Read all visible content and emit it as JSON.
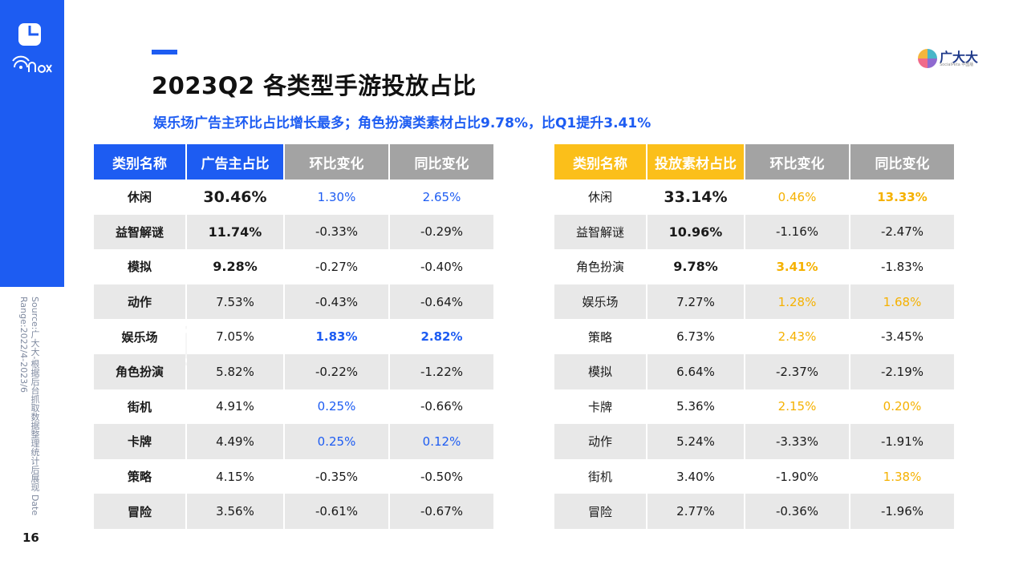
{
  "page_number": "16",
  "source_note": "Source:广大大-根据后台抓取数据整理统计后展现\nDate Range:2022/4-2023/6",
  "title": "2023Q2 各类型手游投放占比",
  "subtitle": "娱乐场广告主环比占比增长最多；角色扮演类素材占比9.78%，比Q1提升3.41%",
  "brand": {
    "name": "广大大",
    "tagline": "SocialPeta 中国版"
  },
  "colors": {
    "primary_blue": "#1d5cf2",
    "accent_yellow": "#fbbf1a",
    "header_gray": "#a3a3a3"
  },
  "advertiser_table": {
    "headers": [
      "类别名称",
      "广告主占比",
      "环比变化",
      "同比变化"
    ],
    "rows": [
      {
        "name": "休闲",
        "share": "30.46%",
        "qoq": "1.30%",
        "yoy": "2.65%"
      },
      {
        "name": "益智解谜",
        "share": "11.74%",
        "qoq": "-0.33%",
        "yoy": "-0.29%"
      },
      {
        "name": "模拟",
        "share": "9.28%",
        "qoq": "-0.27%",
        "yoy": "-0.40%"
      },
      {
        "name": "动作",
        "share": "7.53%",
        "qoq": "-0.43%",
        "yoy": "-0.64%"
      },
      {
        "name": "娱乐场",
        "share": "7.05%",
        "qoq": "1.83%",
        "yoy": "2.82%"
      },
      {
        "name": "角色扮演",
        "share": "5.82%",
        "qoq": "-0.22%",
        "yoy": "-1.22%"
      },
      {
        "name": "街机",
        "share": "4.91%",
        "qoq": "0.25%",
        "yoy": "-0.66%"
      },
      {
        "name": "卡牌",
        "share": "4.49%",
        "qoq": "0.25%",
        "yoy": "0.12%"
      },
      {
        "name": "策略",
        "share": "4.15%",
        "qoq": "-0.35%",
        "yoy": "-0.50%"
      },
      {
        "name": "冒险",
        "share": "3.56%",
        "qoq": "-0.61%",
        "yoy": "-0.67%"
      }
    ]
  },
  "creative_table": {
    "headers": [
      "类别名称",
      "投放素材占比",
      "环比变化",
      "同比变化"
    ],
    "rows": [
      {
        "name": "休闲",
        "share": "33.14%",
        "qoq": "0.46%",
        "yoy": "13.33%"
      },
      {
        "name": "益智解谜",
        "share": "10.96%",
        "qoq": "-1.16%",
        "yoy": "-2.47%"
      },
      {
        "name": "角色扮演",
        "share": "9.78%",
        "qoq": "3.41%",
        "yoy": "-1.83%"
      },
      {
        "name": "娱乐场",
        "share": "7.27%",
        "qoq": "1.28%",
        "yoy": "1.68%"
      },
      {
        "name": "策略",
        "share": "6.73%",
        "qoq": "2.43%",
        "yoy": "-3.45%"
      },
      {
        "name": "模拟",
        "share": "6.64%",
        "qoq": "-2.37%",
        "yoy": "-2.19%"
      },
      {
        "name": "卡牌",
        "share": "5.36%",
        "qoq": "2.15%",
        "yoy": "0.20%"
      },
      {
        "name": "动作",
        "share": "5.24%",
        "qoq": "-3.33%",
        "yoy": "-1.91%"
      },
      {
        "name": "街机",
        "share": "3.40%",
        "qoq": "-1.90%",
        "yoy": "1.38%"
      },
      {
        "name": "冒险",
        "share": "2.77%",
        "qoq": "-0.36%",
        "yoy": "-1.96%"
      }
    ]
  }
}
